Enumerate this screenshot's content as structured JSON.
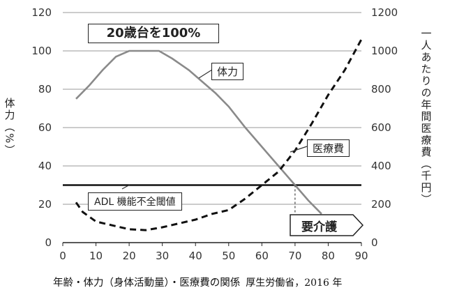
{
  "chart_data": {
    "type": "line",
    "title": "20歳台を100%",
    "caption": "年齢・体力（身体活動量）・医療費の関係",
    "source": "厚生労働省，2016 年",
    "xlabel": "",
    "ylabel_left": "体力（%）",
    "ylabel_right": "一人あたりの年間医療費（千円）",
    "x_ticks": [
      "0",
      "10",
      "20",
      "30",
      "40",
      "50",
      "60",
      "70",
      "80",
      "90"
    ],
    "y_left_ticks": [
      "0",
      "20",
      "40",
      "60",
      "80",
      "100",
      "120"
    ],
    "y_right_ticks": [
      "0",
      "200",
      "400",
      "600",
      "800",
      "1000",
      "1200"
    ],
    "xlim": [
      0,
      90
    ],
    "ylim_left": [
      0,
      120
    ],
    "ylim_right": [
      0,
      1200
    ],
    "series": [
      {
        "name": "体力",
        "axis": "left",
        "style": "solid",
        "x": [
          4,
          8,
          12,
          16,
          20,
          25,
          29,
          33,
          38,
          42,
          46,
          50,
          55,
          60,
          65,
          70,
          74,
          78
        ],
        "y": [
          75,
          82,
          90,
          97,
          100,
          100,
          100,
          96,
          90,
          84,
          78,
          71,
          60,
          50,
          40,
          30,
          22,
          15
        ]
      },
      {
        "name": "医療費",
        "axis": "right",
        "style": "dashed",
        "x": [
          4,
          6,
          10,
          15,
          20,
          25,
          30,
          35,
          40,
          45,
          50,
          55,
          60,
          65,
          70,
          75,
          80,
          85,
          90
        ],
        "y": [
          210,
          160,
          110,
          90,
          70,
          65,
          80,
          100,
          120,
          150,
          170,
          230,
          300,
          370,
          480,
          620,
          770,
          900,
          1060
        ]
      }
    ],
    "reference_line": {
      "name": "ADL機能不全閾値",
      "axis": "left",
      "y": 30
    },
    "annotations": {
      "fitness_label": "体力",
      "medical_label": "医療費",
      "adl_label": "ADL 機能不全閾値",
      "care_label": "要介護",
      "care_age": 70
    },
    "grid": true
  }
}
